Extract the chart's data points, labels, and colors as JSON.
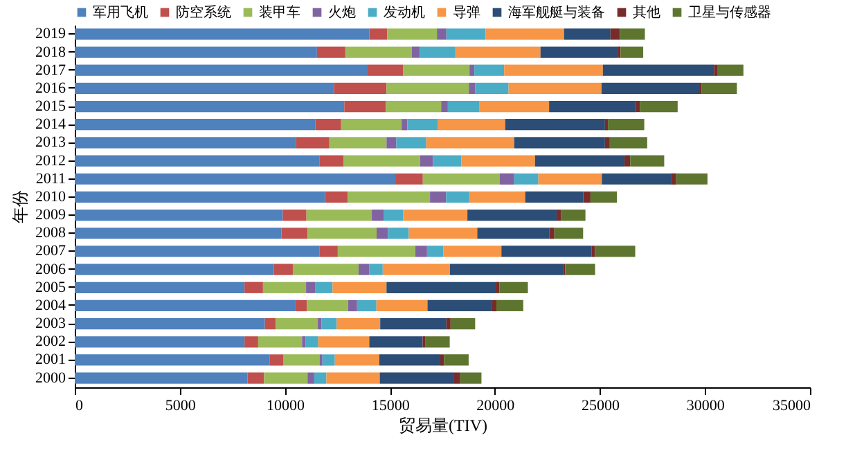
{
  "chart_data": {
    "type": "bar",
    "orientation": "horizontal",
    "stacked": true,
    "xlabel": "贸易量(TIV)",
    "ylabel": "年份",
    "legend": "top",
    "categories": [
      "2019",
      "2018",
      "2017",
      "2016",
      "2015",
      "2014",
      "2013",
      "2012",
      "2011",
      "2010",
      "2009",
      "2008",
      "2007",
      "2006",
      "2005",
      "2004",
      "2003",
      "2002",
      "2001",
      "2000"
    ],
    "xlim": [
      0,
      35000
    ],
    "xticks": [
      0,
      5000,
      10000,
      15000,
      20000,
      25000,
      30000,
      35000
    ],
    "series": [
      {
        "name": "军用飞机",
        "color": "#4f81bd",
        "values": [
          14020,
          11530,
          13910,
          12340,
          12830,
          11460,
          10540,
          11660,
          15260,
          11910,
          9900,
          9840,
          11660,
          9480,
          8080,
          10510,
          9050,
          8080,
          9270,
          8220
        ]
      },
      {
        "name": "防空系统",
        "color": "#c0504d",
        "values": [
          850,
          1350,
          1730,
          2500,
          1980,
          1220,
          1580,
          1130,
          1310,
          1080,
          1130,
          1240,
          860,
          900,
          880,
          540,
          520,
          650,
          650,
          790
        ]
      },
      {
        "name": "装甲车",
        "color": "#9bbb59",
        "values": [
          2370,
          3170,
          3150,
          3920,
          2630,
          2880,
          2720,
          3650,
          3650,
          3920,
          3110,
          3290,
          3690,
          3130,
          2050,
          1960,
          2000,
          2090,
          1730,
          2070
        ]
      },
      {
        "name": "火炮",
        "color": "#8064a2",
        "values": [
          450,
          380,
          230,
          310,
          320,
          270,
          470,
          610,
          700,
          770,
          560,
          540,
          560,
          500,
          450,
          430,
          180,
          160,
          140,
          320
        ]
      },
      {
        "name": "发动机",
        "color": "#4bacc6",
        "values": [
          1870,
          1690,
          1420,
          1580,
          1510,
          1440,
          1420,
          1350,
          1150,
          1100,
          930,
          990,
          770,
          650,
          810,
          920,
          720,
          610,
          590,
          580
        ]
      },
      {
        "name": "导弹",
        "color": "#f79646",
        "values": [
          3730,
          4050,
          4700,
          4430,
          3310,
          3220,
          4190,
          3510,
          3020,
          2660,
          3060,
          3260,
          2770,
          3200,
          2570,
          2430,
          2070,
          2430,
          2120,
          2540
        ]
      },
      {
        "name": "海军舰艇与装备",
        "color": "#2c4d75",
        "values": [
          2210,
          3670,
          5290,
          4680,
          4140,
          4750,
          4320,
          4260,
          3290,
          2770,
          4250,
          3440,
          4300,
          5380,
          5200,
          3080,
          3150,
          2540,
          2900,
          3510
        ]
      },
      {
        "name": "其他",
        "color": "#772c2a",
        "values": [
          450,
          140,
          180,
          70,
          180,
          140,
          230,
          270,
          250,
          340,
          200,
          230,
          160,
          110,
          180,
          200,
          200,
          140,
          180,
          320
        ]
      },
      {
        "name": "卫星与传感器",
        "color": "#5e7530",
        "values": [
          1190,
          1080,
          1220,
          1690,
          1800,
          1730,
          1780,
          1620,
          1490,
          1260,
          1170,
          1370,
          1910,
          1420,
          1350,
          1280,
          1170,
          1150,
          1170,
          1010
        ]
      }
    ]
  }
}
